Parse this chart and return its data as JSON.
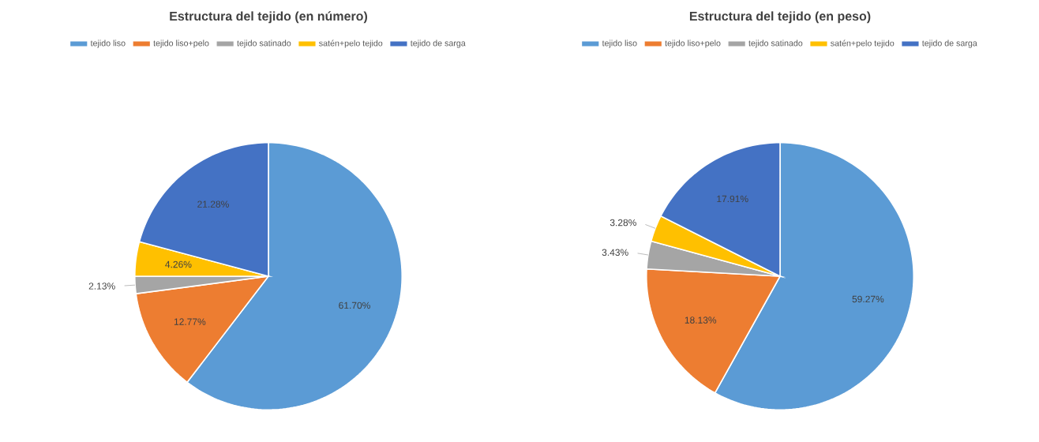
{
  "chart_data": [
    {
      "type": "pie",
      "title": "Estructura del tejido (en número)",
      "categories": [
        "tejido liso",
        "tejido liso+pelo",
        "tejido satinado",
        "satén+pelo tejido",
        "tejido de sarga"
      ],
      "values": [
        61.7,
        12.77,
        2.13,
        4.26,
        21.28
      ],
      "colors": [
        "#5b9bd5",
        "#ed7d31",
        "#a5a5a5",
        "#ffc000",
        "#4472c4"
      ],
      "value_labels": [
        "61.70%",
        "12.77%",
        "2.13%",
        "4.26%",
        "21.28%"
      ],
      "legend": "top"
    },
    {
      "type": "pie",
      "title": "Estructura del tejido (en peso)",
      "categories": [
        "tejido liso",
        "tejido liso+pelo",
        "tejido satinado",
        "satén+pelo tejido",
        "tejido de sarga"
      ],
      "values": [
        59.27,
        18.13,
        3.43,
        3.28,
        17.91
      ],
      "colors": [
        "#5b9bd5",
        "#ed7d31",
        "#a5a5a5",
        "#ffc000",
        "#4472c4"
      ],
      "value_labels": [
        "59.27%",
        "18.13%",
        "3.43%",
        "3.28%",
        "17.91%"
      ],
      "legend": "top"
    }
  ]
}
